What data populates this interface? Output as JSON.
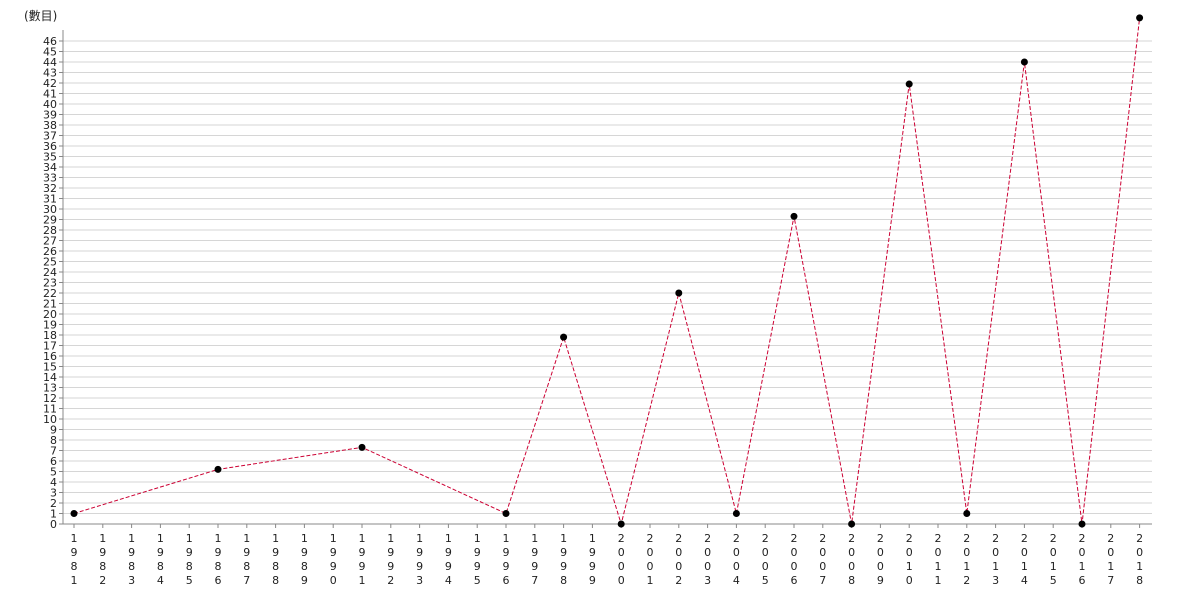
{
  "chart_data": {
    "type": "line",
    "title": "",
    "xlabel": "",
    "ylabel": "(數目)",
    "ylim": [
      0,
      46
    ],
    "grid": true,
    "line_style": "dashed",
    "line_color": "#cc0033",
    "marker_color": "#000000",
    "categories": [
      "1981",
      "1982",
      "1983",
      "1984",
      "1985",
      "1986",
      "1987",
      "1988",
      "1989",
      "1990",
      "1991",
      "1992",
      "1993",
      "1994",
      "1995",
      "1996",
      "1997",
      "1998",
      "1999",
      "2000",
      "2001",
      "2002",
      "2003",
      "2004",
      "2005",
      "2006",
      "2007",
      "2008",
      "2009",
      "2010",
      "2011",
      "2012",
      "2013",
      "2014",
      "2015",
      "2016",
      "2017",
      "2018"
    ],
    "series": [
      {
        "points": [
          {
            "x": "1981",
            "y": 1
          },
          {
            "x": "1986",
            "y": 5.2
          },
          {
            "x": "1991",
            "y": 7.3
          },
          {
            "x": "1996",
            "y": 1
          },
          {
            "x": "1998",
            "y": 17.8
          },
          {
            "x": "2000",
            "y": 0
          },
          {
            "x": "2002",
            "y": 22
          },
          {
            "x": "2004",
            "y": 1
          },
          {
            "x": "2006",
            "y": 29.3
          },
          {
            "x": "2008",
            "y": 0
          },
          {
            "x": "2010",
            "y": 41.9
          },
          {
            "x": "2012",
            "y": 1
          },
          {
            "x": "2014",
            "y": 44
          },
          {
            "x": "2016",
            "y": 0
          },
          {
            "x": "2018",
            "y": 48.2
          }
        ]
      }
    ]
  }
}
